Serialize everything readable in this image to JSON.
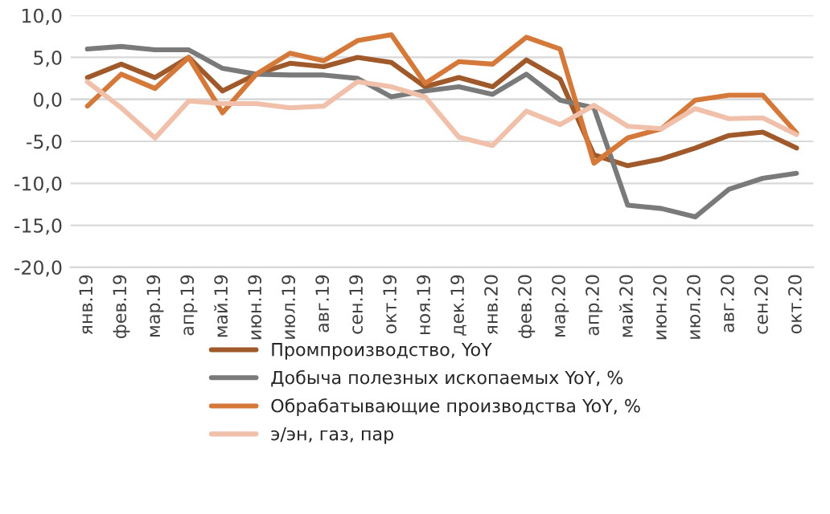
{
  "chart_data": {
    "type": "line",
    "categories": [
      "янв.19",
      "фев.19",
      "мар.19",
      "апр.19",
      "май.19",
      "июн.19",
      "июл.19",
      "авг.19",
      "сен.19",
      "окт.19",
      "ноя.19",
      "дек.19",
      "янв.20",
      "фев.20",
      "мар.20",
      "апр.20",
      "май.20",
      "июн.20",
      "июл.20",
      "авг.20",
      "сен.20",
      "окт.20"
    ],
    "series": [
      {
        "name": "Промпроизводство, YoY",
        "color": "#a0592a",
        "values": [
          2.6,
          4.2,
          2.6,
          5.0,
          1.0,
          3.0,
          4.3,
          3.9,
          5.0,
          4.4,
          1.5,
          2.6,
          1.5,
          4.7,
          2.4,
          -6.6,
          -7.9,
          -7.1,
          -5.8,
          -4.3,
          -3.9,
          -5.8
        ]
      },
      {
        "name": "Добыча полезных ископаемых YoY, %",
        "color": "#7a7a7a",
        "values": [
          6.0,
          6.3,
          5.9,
          5.9,
          3.7,
          3.0,
          2.9,
          2.9,
          2.5,
          0.3,
          1.0,
          1.5,
          0.6,
          3.0,
          -0.1,
          -1.0,
          -12.6,
          -13.0,
          -14.0,
          -10.7,
          -9.4,
          -8.8
        ]
      },
      {
        "name": "Обрабатывающие производства YoY, %",
        "color": "#d4793a",
        "values": [
          -0.8,
          3.0,
          1.3,
          5.0,
          -1.6,
          3.0,
          5.5,
          4.6,
          7.0,
          7.7,
          1.9,
          4.5,
          4.2,
          7.4,
          6.0,
          -7.6,
          -4.6,
          -3.5,
          -0.1,
          0.5,
          0.5,
          -4.0
        ]
      },
      {
        "name": "э/эн, газ, пар",
        "color": "#f0c0aa",
        "values": [
          2.1,
          -1.0,
          -4.6,
          -0.2,
          -0.5,
          -0.5,
          -1.0,
          -0.8,
          2.1,
          1.5,
          0.3,
          -4.5,
          -5.5,
          -1.4,
          -3.0,
          -0.7,
          -3.2,
          -3.5,
          -1.1,
          -2.3,
          -2.2,
          -4.2
        ]
      }
    ],
    "ylim": [
      -20,
      10
    ],
    "yticks": [
      {
        "value": -20,
        "label": "-20,0"
      },
      {
        "value": -15,
        "label": "-15,0"
      },
      {
        "value": -10,
        "label": "-10,0"
      },
      {
        "value": -5,
        "label": "-5,0"
      },
      {
        "value": 0,
        "label": "0,0"
      },
      {
        "value": 5,
        "label": "5,0"
      },
      {
        "value": 10,
        "label": "10,0"
      }
    ],
    "grid": "y",
    "legend": "bottom",
    "marker": "none",
    "line_style": "solid"
  }
}
